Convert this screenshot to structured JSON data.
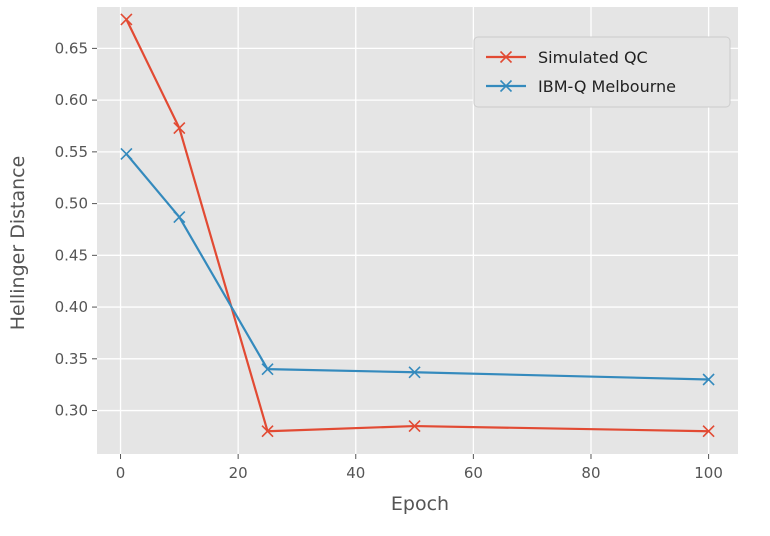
{
  "chart_data": {
    "type": "line",
    "title": "",
    "xlabel": "Epoch",
    "ylabel": "Hellinger Distance",
    "xlim": [
      -4,
      105
    ],
    "ylim": [
      0.258,
      0.69
    ],
    "xticks": [
      0,
      20,
      40,
      60,
      80,
      100
    ],
    "yticks": [
      0.3,
      0.35,
      0.4,
      0.45,
      0.5,
      0.55,
      0.6,
      0.65
    ],
    "ytick_labels": [
      "0.30",
      "0.35",
      "0.40",
      "0.45",
      "0.50",
      "0.55",
      "0.60",
      "0.65"
    ],
    "grid": true,
    "legend_position": "top-right",
    "series": [
      {
        "name": "Simulated QC",
        "color": "#E24A33",
        "marker": "x",
        "x": [
          1,
          10,
          25,
          50,
          100
        ],
        "y": [
          0.678,
          0.573,
          0.28,
          0.285,
          0.28
        ]
      },
      {
        "name": "IBM-Q Melbourne",
        "color": "#348ABD",
        "marker": "x",
        "x": [
          1,
          10,
          25,
          50,
          100
        ],
        "y": [
          0.548,
          0.487,
          0.34,
          0.337,
          0.33
        ]
      }
    ]
  }
}
